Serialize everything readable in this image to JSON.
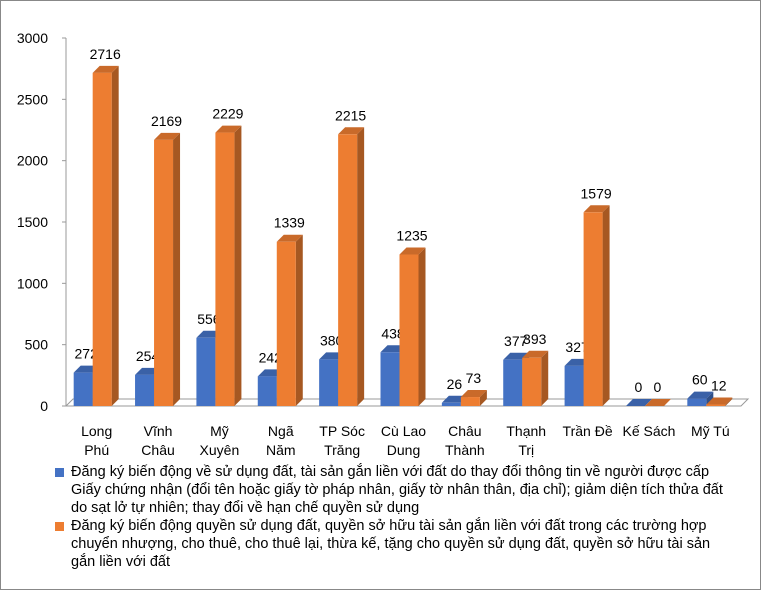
{
  "chart_data": {
    "type": "bar3d",
    "categories": [
      "Long\nPhú",
      "Vĩnh\nChâu",
      "Mỹ\nXuyên",
      "Ngã\nNăm",
      "TP Sóc\nTrăng",
      "Cù Lao\nDung",
      "Châu\nThành",
      "Thạnh\nTrị",
      "Trần Đề",
      "Kế Sách",
      "Mỹ Tú"
    ],
    "series": [
      {
        "name": "Đăng ký biến động về sử dụng đất, tài sản gắn liền với đất do thay đổi thông tin về người được cấp Giấy chứng nhận (đổi tên hoặc giấy tờ pháp nhân, giấy tờ nhân thân, địa chỉ); giảm diện tích thửa đất do sạt lở tự nhiên; thay đổi về hạn chế quyền sử dụng",
        "color": "#4472c4",
        "values": [
          272,
          254,
          556,
          242,
          380,
          438,
          26,
          377,
          327,
          0,
          60
        ]
      },
      {
        "name": "Đăng ký biến động quyền sử dụng đất, quyền sở hữu tài sản gắn liền với đất trong các trường hợp chuyển nhượng, cho thuê, cho thuê lại, thừa kế, tặng cho quyền sử dụng đất, quyền sở hữu tài sản gắn liền với đất",
        "color": "#ed7d31",
        "values": [
          2716,
          2169,
          2229,
          1339,
          2215,
          1235,
          73,
          393,
          1579,
          0,
          12
        ]
      }
    ],
    "ylim": [
      0,
      3000
    ],
    "yticks": [
      0,
      500,
      1000,
      1500,
      2000,
      2500,
      3000
    ],
    "legend": "bottom"
  }
}
